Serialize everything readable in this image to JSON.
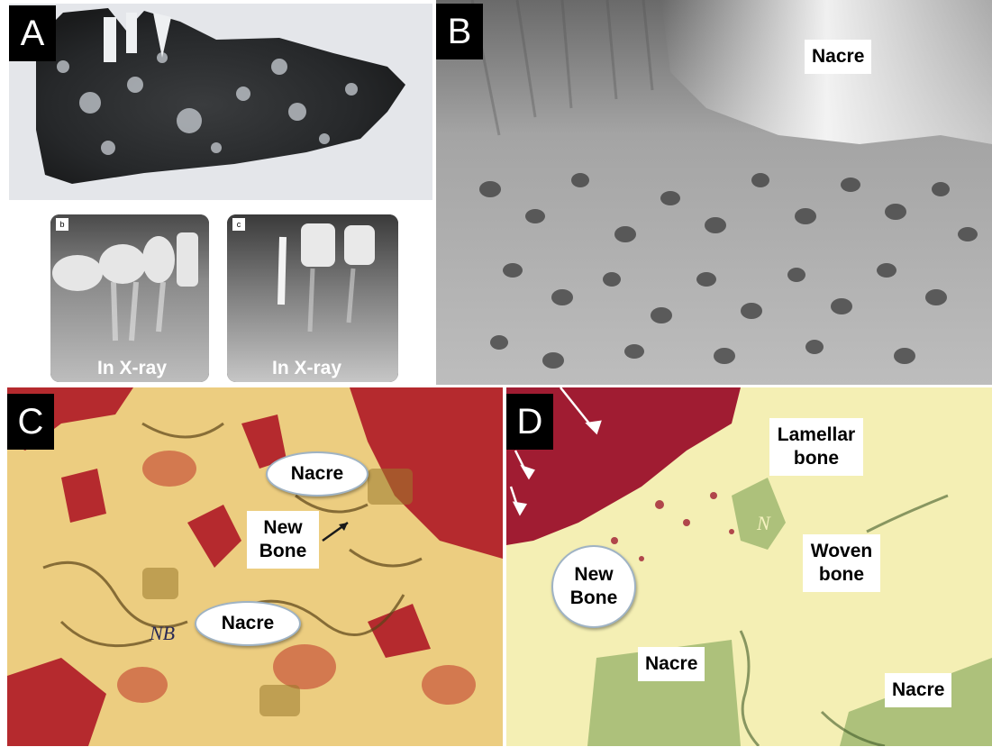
{
  "panel_a": {
    "letter": "A",
    "xray_b": {
      "tag": "b",
      "label": "In X-ray"
    },
    "xray_c": {
      "tag": "c",
      "label": "In X-ray"
    }
  },
  "panel_b": {
    "letter": "B",
    "nacre_label": "Nacre"
  },
  "panel_c": {
    "letter": "C",
    "nacre_top": "Nacre",
    "new_bone": "New Bone",
    "nacre_bottom": "Nacre",
    "nb_mark": "NB"
  },
  "panel_d": {
    "letter": "D",
    "lamellar": "Lamellar bone",
    "woven": "Woven bone",
    "new_bone": "New Bone",
    "nacre_left": "Nacre",
    "nacre_right": "Nacre",
    "n_mark": "N"
  }
}
